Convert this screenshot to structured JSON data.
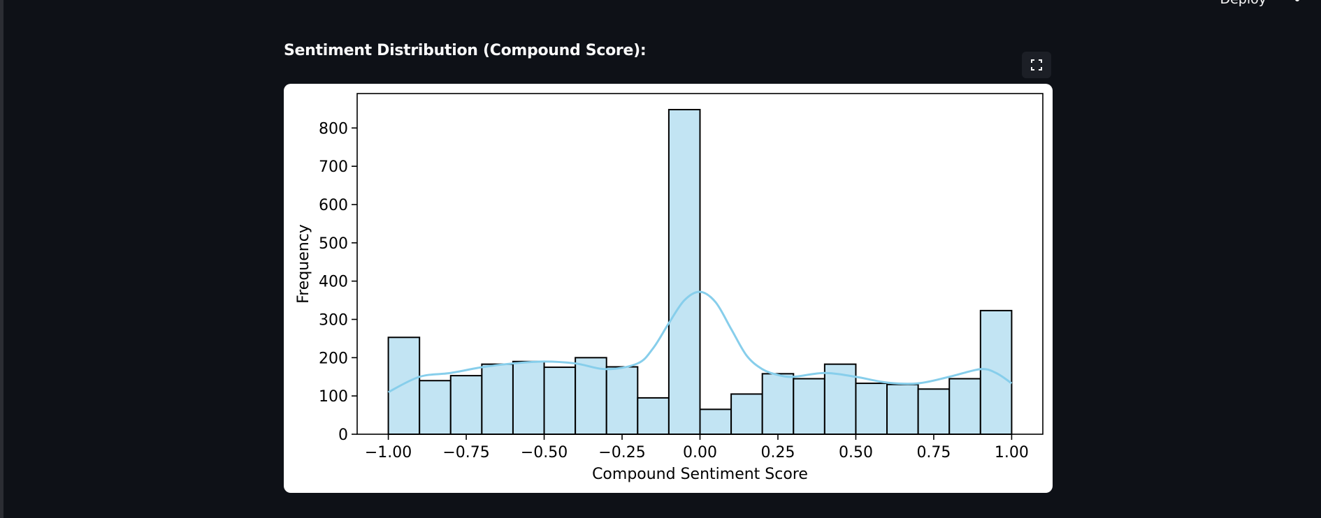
{
  "header": {
    "deploy_label": "Deploy",
    "menu_icon": "kebab-vertical-icon"
  },
  "section": {
    "title": "Sentiment Distribution (Compound Score):",
    "fullscreen_icon": "fullscreen-icon"
  },
  "chart_data": {
    "type": "bar",
    "subtype": "histogram-with-kde",
    "xlabel": "Compound Sentiment Score",
    "ylabel": "Frequency",
    "xlim": [
      -1.1,
      1.1
    ],
    "ylim": [
      0,
      890
    ],
    "xticks": [
      -1.0,
      -0.75,
      -0.5,
      -0.25,
      0.0,
      0.25,
      0.5,
      0.75,
      1.0
    ],
    "xtick_labels": [
      "−1.00",
      "−0.75",
      "−0.50",
      "−0.25",
      "0.00",
      "0.25",
      "0.50",
      "0.75",
      "1.00"
    ],
    "yticks": [
      0,
      100,
      200,
      300,
      400,
      500,
      600,
      700,
      800
    ],
    "bin_edges": [
      -1.0,
      -0.9,
      -0.8,
      -0.7,
      -0.6,
      -0.5,
      -0.4,
      -0.3,
      -0.2,
      -0.1,
      0.0,
      0.1,
      0.2,
      0.3,
      0.4,
      0.5,
      0.6,
      0.7,
      0.8,
      0.9,
      1.0
    ],
    "values": [
      253,
      140,
      153,
      183,
      190,
      175,
      200,
      176,
      95,
      848,
      65,
      105,
      158,
      145,
      183,
      133,
      130,
      118,
      145,
      323
    ],
    "kde": {
      "x": [
        -1.0,
        -0.9,
        -0.8,
        -0.7,
        -0.6,
        -0.5,
        -0.4,
        -0.3,
        -0.2,
        -0.15,
        -0.1,
        -0.05,
        0.0,
        0.05,
        0.1,
        0.15,
        0.2,
        0.25,
        0.3,
        0.4,
        0.5,
        0.6,
        0.7,
        0.8,
        0.9,
        0.95,
        1.0
      ],
      "y": [
        110,
        150,
        160,
        175,
        185,
        190,
        185,
        170,
        185,
        225,
        290,
        350,
        372,
        345,
        275,
        205,
        170,
        155,
        150,
        160,
        150,
        135,
        133,
        150,
        170,
        160,
        133
      ]
    },
    "bar_color": "#c2e4f3",
    "bar_edge_color": "#000000",
    "kde_color": "#87ceeb",
    "grid": false,
    "legend": "none"
  }
}
